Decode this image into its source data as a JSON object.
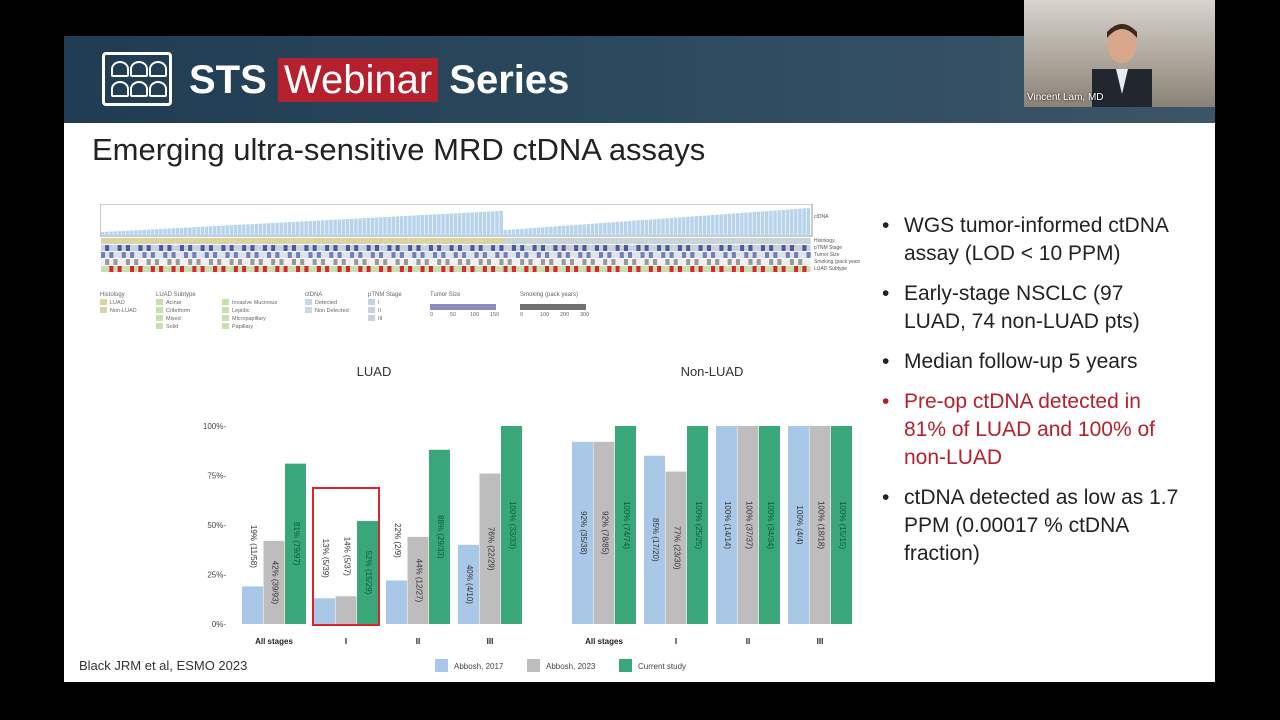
{
  "banner": {
    "brand_prefix": "STS",
    "brand_highlight": "Webinar",
    "brand_suffix": "Series"
  },
  "slide": {
    "title": "Emerging ultra-sensitive MRD ctDNA assays",
    "citation": "Black JRM et al, ESMO 2023",
    "bullets": [
      {
        "text": "WGS tumor-informed ctDNA assay (LOD < 10 PPM)",
        "highlight": false
      },
      {
        "text": "Early-stage NSCLC (97 LUAD, 74 non-LUAD pts)",
        "highlight": false
      },
      {
        "text": "Median follow-up 5 years",
        "highlight": false
      },
      {
        "text": "Pre-op ctDNA detected in 81% of LUAD and 100% of non-LUAD",
        "highlight": true
      },
      {
        "text": "ctDNA detected as low as 1.7 PPM (0.00017 % ctDNA fraction)",
        "highlight": false
      }
    ]
  },
  "video": {
    "participant_name": "Vincent Lam, MD"
  },
  "colors": {
    "abbosh2017": "#a9c8e8",
    "abbosh2023": "#bdbdbd",
    "current": "#3aa77a",
    "highlight_box": "#d9262c",
    "banner": "#2c4a5e"
  },
  "chart_data": [
    {
      "type": "bar",
      "title": "LUAD",
      "categories": [
        "All stages",
        "I",
        "II",
        "III"
      ],
      "ylim": [
        0,
        100
      ],
      "yticks": [
        "0%",
        "25%",
        "50%",
        "75%",
        "100%"
      ],
      "highlighted_category": "I",
      "series": [
        {
          "name": "Abbosh, 2017",
          "values": [
            19,
            13,
            22,
            40
          ],
          "labels": [
            "19% (11/58)",
            "13% (5/39)",
            "22% (2/9)",
            "40% (4/10)"
          ]
        },
        {
          "name": "Abbosh, 2023",
          "values": [
            42,
            14,
            44,
            76
          ],
          "labels": [
            "42% (39/93)",
            "14% (5/37)",
            "44% (12/27)",
            "76% (22/29)"
          ]
        },
        {
          "name": "Current study",
          "values": [
            81,
            52,
            88,
            100
          ],
          "labels": [
            "81% (79/97)",
            "52% (15/29)",
            "88% (29/33)",
            "100% (33/33)"
          ]
        }
      ]
    },
    {
      "type": "bar",
      "title": "Non-LUAD",
      "categories": [
        "All stages",
        "I",
        "II",
        "III"
      ],
      "ylim": [
        0,
        100
      ],
      "series": [
        {
          "name": "Abbosh, 2017",
          "values": [
            92,
            85,
            100,
            100
          ],
          "labels": [
            "92% (35/38)",
            "85% (17/20)",
            "100% (14/14)",
            "100% (4/4)"
          ]
        },
        {
          "name": "Abbosh, 2023",
          "values": [
            92,
            77,
            100,
            100
          ],
          "labels": [
            "92% (78/85)",
            "77% (23/30)",
            "100% (37/37)",
            "100% (18/18)"
          ]
        },
        {
          "name": "Current study",
          "values": [
            100,
            100,
            100,
            100
          ],
          "labels": [
            "100% (74/74)",
            "100% (25/25)",
            "100% (34/34)",
            "100% (15/15)"
          ]
        }
      ]
    }
  ],
  "oncoprint": {
    "rows": [
      "ctDNA",
      "Histology",
      "pTNM Stage",
      "Tumor Size",
      "Smoking (pack years)",
      "LUAD Subtype"
    ],
    "legend": [
      {
        "title": "Histology",
        "items": [
          "LUAD",
          "Non-LUAD"
        ]
      },
      {
        "title": "LUAD Subtype",
        "items": [
          "Acinar",
          "Cribriform",
          "Mixed",
          "Solid",
          "Invasive Mucinous",
          "Lepidic",
          "Micropapillary",
          "Papillary"
        ]
      },
      {
        "title": "ctDNA",
        "items": [
          "Detected",
          "Non Detected"
        ]
      },
      {
        "title": "pTNM Stage",
        "items": [
          "I",
          "II",
          "III"
        ]
      },
      {
        "title": "Tumor Size",
        "items": [
          "0",
          "50",
          "100",
          "150"
        ]
      },
      {
        "title": "Smoking (pack years)",
        "items": [
          "0",
          "100",
          "200",
          "300"
        ]
      }
    ]
  }
}
